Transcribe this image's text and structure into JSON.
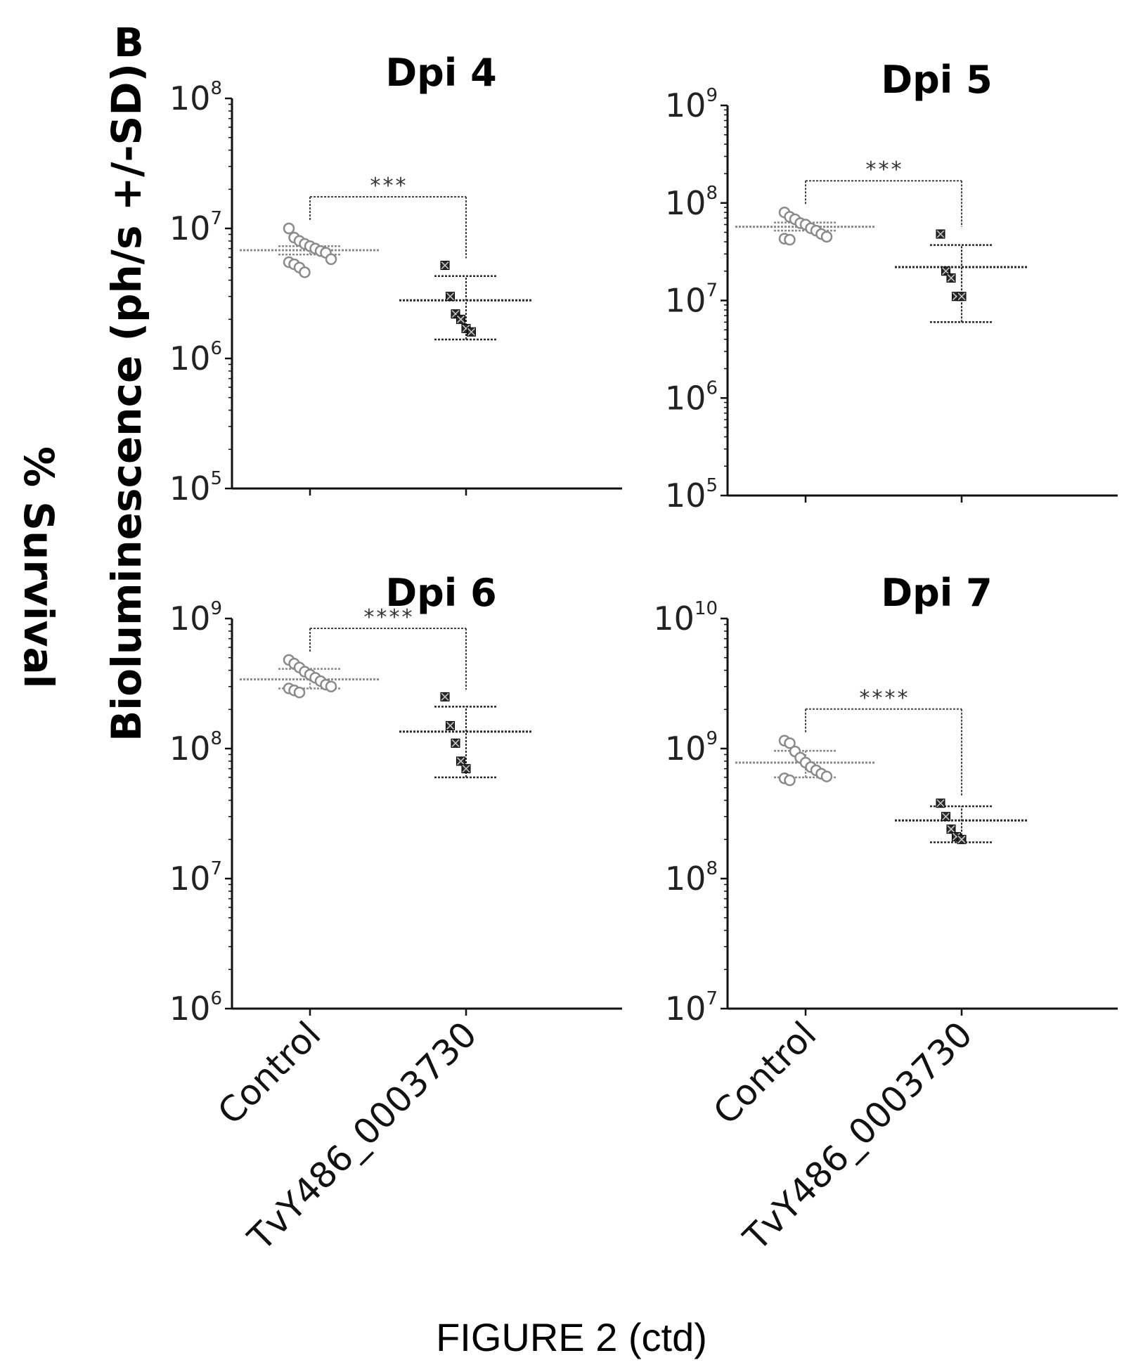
{
  "panel_label": "B",
  "figure_caption": "FIGURE 2 (ctd)",
  "ylabel": "Bioluminescence (ph/s +/-SD)",
  "rotated_label": "% Survival",
  "colors": {
    "control": "#8a8a8a",
    "treatment": "#2a2a2a",
    "axis": "#111111"
  },
  "chart_data": [
    {
      "type": "scatter",
      "title": "Dpi 4",
      "yscale": "log",
      "ylim": [
        100000,
        100000000
      ],
      "ytick_exponents": [
        5,
        6,
        7,
        8
      ],
      "categories": [
        "Control",
        "TvY486_0003730"
      ],
      "significance": "***",
      "series": [
        {
          "values": [
            10000000,
            8500000,
            8000000,
            7600000,
            7300000,
            7000000,
            6700000,
            6500000,
            5800000,
            5500000,
            5300000,
            5000000,
            4600000
          ],
          "mean": 6800000,
          "sd_low": 6300000,
          "sd_high": 7300000,
          "marker": "open-circle"
        },
        {
          "values": [
            5200000,
            3000000,
            2200000,
            2000000,
            1700000,
            1600000
          ],
          "mean": 2800000,
          "sd_low": 1400000,
          "sd_high": 4300000,
          "marker": "filled-square"
        }
      ]
    },
    {
      "type": "scatter",
      "title": "Dpi 5",
      "yscale": "log",
      "ylim": [
        100000,
        1000000000
      ],
      "ytick_exponents": [
        5,
        6,
        7,
        8,
        9
      ],
      "categories": [
        "Control",
        "TvY486_0003730"
      ],
      "significance": "***",
      "series": [
        {
          "values": [
            80000000,
            72000000,
            68000000,
            62000000,
            60000000,
            55000000,
            52000000,
            48000000,
            45000000,
            43000000,
            42000000
          ],
          "mean": 57000000,
          "sd_low": 52000000,
          "sd_high": 63000000,
          "marker": "open-circle"
        },
        {
          "values": [
            48000000,
            20000000,
            17000000,
            11000000,
            11000000
          ],
          "mean": 22000000,
          "sd_low": 6000000,
          "sd_high": 37000000,
          "marker": "filled-square"
        }
      ]
    },
    {
      "type": "scatter",
      "title": "Dpi 6",
      "yscale": "log",
      "ylim": [
        1000000,
        1000000000
      ],
      "ytick_exponents": [
        6,
        7,
        8,
        9
      ],
      "categories": [
        "Control",
        "TvY486_0003730"
      ],
      "significance": "****",
      "series": [
        {
          "values": [
            480000000,
            450000000,
            420000000,
            390000000,
            370000000,
            350000000,
            330000000,
            310000000,
            300000000,
            290000000,
            280000000,
            270000000
          ],
          "mean": 340000000,
          "sd_low": 290000000,
          "sd_high": 410000000,
          "marker": "open-circle"
        },
        {
          "values": [
            250000000,
            150000000,
            110000000,
            80000000,
            70000000
          ],
          "mean": 135000000,
          "sd_low": 60000000,
          "sd_high": 210000000,
          "marker": "filled-square"
        }
      ]
    },
    {
      "type": "scatter",
      "title": "Dpi 7",
      "yscale": "log",
      "ylim": [
        10000000,
        10000000000
      ],
      "ytick_exponents": [
        7,
        8,
        9,
        10
      ],
      "categories": [
        "Control",
        "TvY486_0003730"
      ],
      "significance": "****",
      "series": [
        {
          "values": [
            1150000000,
            1100000000,
            950000000,
            850000000,
            780000000,
            720000000,
            680000000,
            640000000,
            610000000,
            590000000,
            570000000
          ],
          "mean": 780000000,
          "sd_low": 600000000,
          "sd_high": 960000000,
          "marker": "open-circle"
        },
        {
          "values": [
            380000000,
            300000000,
            240000000,
            210000000,
            200000000
          ],
          "mean": 280000000,
          "sd_low": 190000000,
          "sd_high": 360000000,
          "marker": "filled-square"
        }
      ]
    }
  ]
}
